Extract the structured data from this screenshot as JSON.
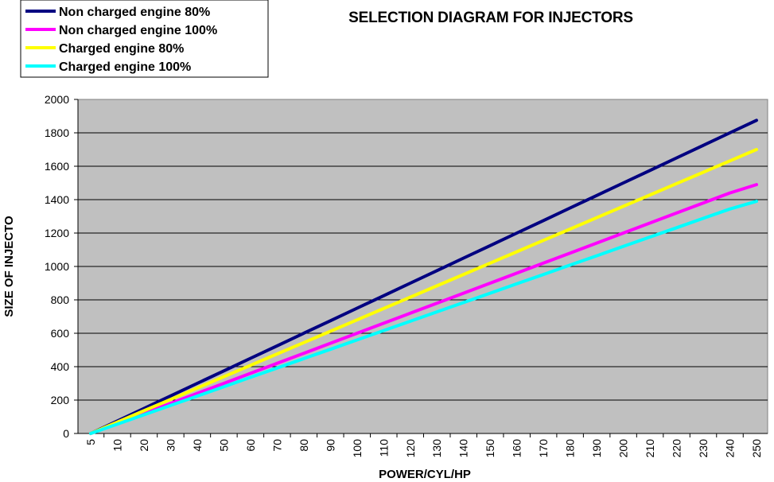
{
  "chart_data": {
    "type": "line",
    "title": "SELECTION DIAGRAM FOR INJECTORS",
    "xlabel": "POWER/CYL/HP",
    "ylabel": "SIZE OF INJECTO",
    "ylim": [
      0,
      2000
    ],
    "yticks": [
      0,
      200,
      400,
      600,
      800,
      1000,
      1200,
      1400,
      1600,
      1800,
      2000
    ],
    "categories": [
      "5",
      "10",
      "20",
      "30",
      "40",
      "50",
      "60",
      "70",
      "80",
      "90",
      "100",
      "110",
      "120",
      "130",
      "140",
      "150",
      "160",
      "170",
      "180",
      "190",
      "200",
      "210",
      "220",
      "230",
      "240",
      "250"
    ],
    "grid": true,
    "legend": "top-left",
    "series": [
      {
        "name": "Non charged engine 80%",
        "color": "#000080",
        "values": [
          0,
          75,
          150,
          225,
          300,
          375,
          450,
          525,
          600,
          675,
          750,
          825,
          900,
          975,
          1050,
          1125,
          1200,
          1275,
          1350,
          1425,
          1500,
          1575,
          1650,
          1725,
          1800,
          1875
        ]
      },
      {
        "name": "Non charged engine 100%",
        "color": "#ff00ff",
        "values": [
          0,
          60,
          120,
          180,
          240,
          300,
          360,
          420,
          480,
          540,
          600,
          660,
          720,
          780,
          840,
          900,
          960,
          1020,
          1080,
          1140,
          1200,
          1260,
          1320,
          1380,
          1440,
          1490
        ]
      },
      {
        "name": "Charged engine 80%",
        "color": "#ffff00",
        "values": [
          0,
          68,
          136,
          204,
          272,
          340,
          408,
          476,
          544,
          612,
          680,
          748,
          816,
          884,
          952,
          1020,
          1088,
          1156,
          1224,
          1292,
          1360,
          1428,
          1496,
          1564,
          1632,
          1700
        ]
      },
      {
        "name": "Charged engine 100%",
        "color": "#00ffff",
        "values": [
          0,
          56,
          112,
          168,
          224,
          280,
          336,
          392,
          448,
          504,
          560,
          616,
          672,
          728,
          784,
          840,
          896,
          952,
          1008,
          1064,
          1120,
          1176,
          1232,
          1288,
          1344,
          1390
        ]
      }
    ]
  }
}
